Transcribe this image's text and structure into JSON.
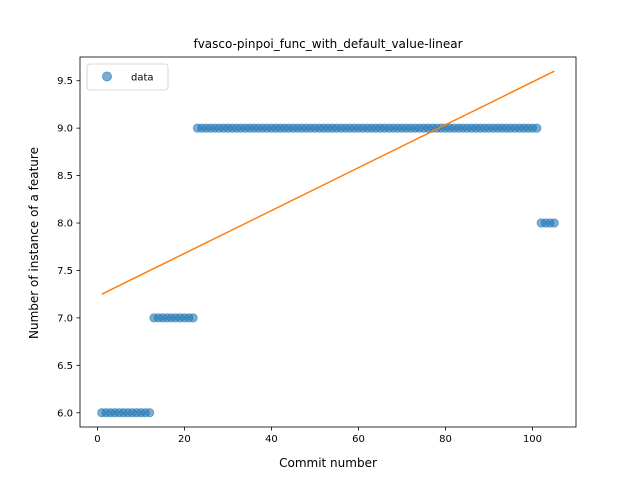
{
  "chart_data": {
    "type": "scatter",
    "title": "fvasco-pinpoi_func_with_default_value-linear",
    "xlabel": "Commit number",
    "ylabel": "Number of instance of a feature",
    "xlim": [
      -4,
      110
    ],
    "ylim": [
      5.85,
      9.75
    ],
    "xticks": [
      0,
      20,
      40,
      60,
      80,
      100
    ],
    "yticks": [
      6.0,
      6.5,
      7.0,
      7.5,
      8.0,
      8.5,
      9.0,
      9.5
    ],
    "grid": false,
    "legend": {
      "placement": "top-left",
      "entries": [
        "data"
      ]
    },
    "series": [
      {
        "name": "data",
        "kind": "scatter",
        "color": "#1f77b4",
        "segments": [
          {
            "x_start": 1,
            "x_end": 12,
            "y": 6.0
          },
          {
            "x_start": 13,
            "x_end": 22,
            "y": 7.0
          },
          {
            "x_start": 23,
            "x_end": 101,
            "y": 9.0
          },
          {
            "x_start": 102,
            "x_end": 105,
            "y": 8.0
          }
        ]
      },
      {
        "name": "",
        "kind": "line",
        "color": "#ff7f0e",
        "x": [
          1,
          105
        ],
        "y": [
          7.25,
          9.6
        ]
      }
    ]
  }
}
